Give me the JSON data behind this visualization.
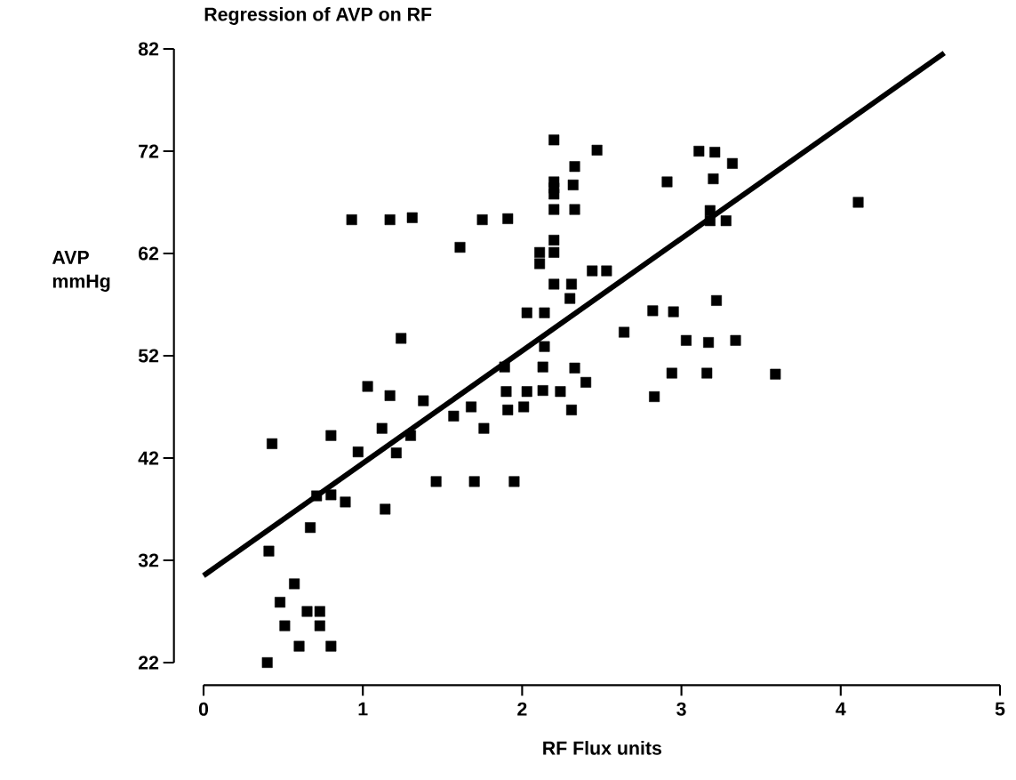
{
  "chart_data": {
    "type": "scatter",
    "title": "Regression of AVP on RF",
    "xlabel": "RF  Flux units",
    "ylabel": "AVP mmHg",
    "xlim": [
      0,
      5
    ],
    "ylim": [
      22,
      82
    ],
    "xticks": [
      0,
      1,
      2,
      3,
      4,
      5
    ],
    "yticks": [
      22,
      32,
      42,
      52,
      62,
      72,
      82
    ],
    "marker": "square",
    "series": [
      {
        "color": "#000000",
        "x": [
          0.4,
          0.41,
          0.43,
          0.48,
          0.51,
          0.57,
          0.6,
          0.65,
          0.73,
          0.73,
          0.8,
          0.67,
          0.71,
          0.8,
          0.89,
          0.8,
          0.97,
          0.93,
          1.03,
          1.17,
          1.17,
          1.21,
          1.31,
          1.12,
          1.14,
          1.24,
          1.3,
          1.38,
          1.46,
          1.57,
          1.68,
          1.7,
          1.76,
          1.75,
          1.91,
          1.61,
          1.89,
          1.9,
          1.91,
          1.95,
          2.01,
          2.03,
          2.03,
          2.14,
          2.13,
          2.13,
          2.14,
          2.11,
          2.11,
          2.2,
          2.2,
          2.2,
          2.2,
          2.2,
          2.2,
          2.2,
          2.2,
          2.24,
          2.31,
          2.3,
          2.31,
          2.32,
          2.33,
          2.33,
          2.33,
          2.4,
          2.44,
          2.53,
          2.47,
          2.64,
          2.82,
          2.83,
          2.95,
          2.91,
          2.94,
          3.03,
          3.11,
          3.21,
          3.2,
          3.16,
          3.17,
          3.18,
          3.18,
          3.22,
          3.28,
          3.32,
          3.34,
          3.59,
          4.11
        ],
        "values": [
          22.0,
          32.9,
          43.4,
          27.9,
          25.6,
          29.7,
          23.6,
          27.0,
          27.0,
          25.6,
          23.6,
          35.2,
          38.3,
          38.4,
          37.7,
          44.2,
          42.6,
          65.3,
          49.0,
          65.3,
          48.1,
          42.5,
          65.5,
          44.9,
          37.0,
          53.7,
          44.2,
          47.6,
          39.7,
          46.1,
          47.0,
          39.7,
          44.9,
          65.3,
          65.4,
          62.6,
          50.9,
          48.5,
          46.7,
          39.7,
          47.0,
          48.5,
          56.2,
          56.2,
          48.6,
          50.9,
          52.9,
          62.1,
          61.0,
          73.1,
          69.0,
          68.4,
          67.8,
          66.3,
          63.3,
          62.1,
          59.0,
          48.5,
          59.0,
          57.6,
          46.7,
          68.7,
          70.5,
          66.3,
          50.8,
          49.4,
          60.3,
          60.3,
          72.1,
          54.3,
          56.4,
          48.0,
          56.3,
          69.0,
          50.3,
          53.5,
          72.0,
          71.9,
          69.3,
          50.3,
          53.3,
          66.2,
          65.2,
          57.4,
          65.2,
          70.8,
          53.5,
          50.2,
          67.0
        ]
      },
      {
        "type": "line",
        "color": "#000000",
        "marker": "none",
        "x": [
          0,
          4.65
        ],
        "values": [
          30.5,
          81.6
        ]
      }
    ]
  }
}
